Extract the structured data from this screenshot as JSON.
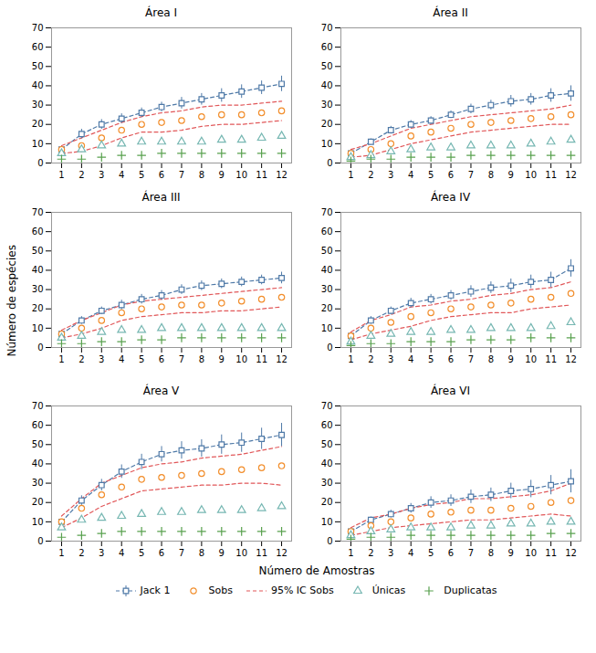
{
  "chart_data": [
    {
      "type": "line",
      "title": "Área I",
      "xlabel": "Número de Amostras",
      "ylabel": "Número de espécies",
      "x": [
        1,
        2,
        3,
        4,
        5,
        6,
        7,
        8,
        9,
        10,
        11,
        12
      ],
      "series": [
        {
          "name": "Jack 1",
          "type": "line",
          "marker": "square",
          "line_style": "dashed",
          "values": [
            7,
            15,
            20,
            23,
            26,
            29,
            31,
            33,
            35,
            37,
            39,
            41
          ],
          "errors": [
            1.0,
            2.5,
            2.5,
            2.5,
            2.5,
            2.5,
            3.0,
            3.0,
            3.5,
            3.5,
            3.5,
            4.0
          ]
        },
        {
          "name": "Sobs",
          "type": "scatter",
          "marker": "circle",
          "values": [
            7,
            9,
            13,
            17,
            20,
            21,
            22,
            24,
            25,
            25,
            26,
            27
          ]
        },
        {
          "name": "95% IC Sobs",
          "type": "line",
          "line_style": "dashed",
          "values": [
            9,
            13,
            17,
            21,
            24,
            26,
            27,
            29,
            30,
            30,
            31,
            32
          ]
        },
        {
          "name": "95% IC Sobs",
          "type": "line",
          "line_style": "dashed",
          "values": [
            5,
            6,
            9,
            13,
            16,
            16,
            17,
            19,
            20,
            20,
            21,
            22
          ]
        },
        {
          "name": "Únicas",
          "type": "scatter",
          "marker": "triangle",
          "values": [
            5,
            7,
            9,
            10,
            11,
            11,
            11,
            11,
            12,
            12,
            13,
            14
          ]
        },
        {
          "name": "Duplicatas",
          "type": "scatter",
          "marker": "plus",
          "values": [
            2,
            2,
            3,
            4,
            4,
            5,
            5,
            5,
            5,
            5,
            5,
            5
          ]
        }
      ],
      "xlim": [
        0.5,
        12.5
      ],
      "xticks": [
        1,
        2,
        3,
        4,
        5,
        6,
        7,
        8,
        9,
        10,
        11,
        12
      ],
      "ylim": [
        0,
        70
      ],
      "yticks": [
        0,
        10,
        20,
        30,
        40,
        50,
        60,
        70
      ],
      "grid": false,
      "legend": "bottom"
    },
    {
      "type": "line",
      "title": "Área II",
      "xlabel": "Número de Amostras",
      "ylabel": "Número de espécies",
      "x": [
        1,
        2,
        3,
        4,
        5,
        6,
        7,
        8,
        9,
        10,
        11,
        12
      ],
      "series": [
        {
          "name": "Jack 1",
          "type": "line",
          "marker": "square",
          "line_style": "dashed",
          "values": [
            5,
            11,
            17,
            20,
            22,
            25,
            28,
            30,
            32,
            33,
            35,
            36
          ],
          "errors": [
            0.5,
            1.5,
            2.0,
            2.0,
            2.0,
            2.0,
            2.5,
            2.5,
            3.0,
            3.0,
            3.5,
            4.0
          ]
        },
        {
          "name": "Sobs",
          "type": "scatter",
          "marker": "circle",
          "values": [
            5,
            7,
            10,
            14,
            16,
            18,
            20,
            21,
            22,
            23,
            24,
            25
          ]
        },
        {
          "name": "95% IC Sobs",
          "type": "line",
          "line_style": "dashed",
          "values": [
            7,
            10,
            14,
            18,
            20,
            22,
            24,
            25,
            26,
            27,
            28,
            30
          ]
        },
        {
          "name": "95% IC Sobs",
          "type": "line",
          "line_style": "dashed",
          "values": [
            3,
            4,
            7,
            10,
            12,
            14,
            16,
            17,
            18,
            19,
            20,
            20
          ]
        },
        {
          "name": "Únicas",
          "type": "scatter",
          "marker": "triangle",
          "values": [
            3,
            4,
            6,
            7,
            8,
            8,
            9,
            9,
            9,
            10,
            11,
            12
          ]
        },
        {
          "name": "Duplicatas",
          "type": "scatter",
          "marker": "plus",
          "values": [
            1,
            2,
            2,
            3,
            3,
            3,
            4,
            4,
            4,
            4,
            4,
            4
          ]
        }
      ],
      "xlim": [
        0.5,
        12.5
      ],
      "xticks": [
        1,
        2,
        3,
        4,
        5,
        6,
        7,
        8,
        9,
        10,
        11,
        12
      ],
      "ylim": [
        0,
        70
      ],
      "yticks": [
        0,
        10,
        20,
        30,
        40,
        50,
        60,
        70
      ],
      "grid": false,
      "legend": "bottom"
    },
    {
      "type": "line",
      "title": "Área III",
      "xlabel": "Número de Amostras",
      "ylabel": "Número de espécies",
      "x": [
        1,
        2,
        3,
        4,
        5,
        6,
        7,
        8,
        9,
        10,
        11,
        12
      ],
      "series": [
        {
          "name": "Jack 1",
          "type": "line",
          "marker": "square",
          "line_style": "dashed",
          "values": [
            7,
            14,
            19,
            22,
            25,
            27,
            30,
            32,
            33,
            34,
            35,
            36
          ],
          "errors": [
            1.0,
            2.0,
            2.0,
            2.5,
            2.5,
            2.5,
            2.5,
            2.5,
            2.5,
            2.5,
            2.5,
            3.0
          ]
        },
        {
          "name": "Sobs",
          "type": "scatter",
          "marker": "circle",
          "values": [
            7,
            10,
            14,
            18,
            20,
            21,
            22,
            22,
            23,
            24,
            25,
            26
          ]
        },
        {
          "name": "95% IC Sobs",
          "type": "line",
          "line_style": "dashed",
          "values": [
            9,
            14,
            18,
            22,
            24,
            25,
            26,
            27,
            28,
            29,
            30,
            31
          ]
        },
        {
          "name": "95% IC Sobs",
          "type": "line",
          "line_style": "dashed",
          "values": [
            5,
            7,
            10,
            14,
            16,
            17,
            18,
            18,
            19,
            19,
            20,
            21
          ]
        },
        {
          "name": "Únicas",
          "type": "scatter",
          "marker": "triangle",
          "values": [
            5,
            6,
            8,
            9,
            9,
            10,
            10,
            10,
            10,
            10,
            10,
            10
          ]
        },
        {
          "name": "Duplicatas",
          "type": "scatter",
          "marker": "plus",
          "values": [
            2,
            2,
            3,
            3,
            4,
            4,
            5,
            5,
            5,
            5,
            5,
            5
          ]
        }
      ],
      "xlim": [
        0.5,
        12.5
      ],
      "xticks": [
        1,
        2,
        3,
        4,
        5,
        6,
        7,
        8,
        9,
        10,
        11,
        12
      ],
      "ylim": [
        0,
        70
      ],
      "yticks": [
        0,
        10,
        20,
        30,
        40,
        50,
        60,
        70
      ],
      "grid": false,
      "legend": "bottom"
    },
    {
      "type": "line",
      "title": "Área IV",
      "xlabel": "Número de Amostras",
      "ylabel": "Número de espécies",
      "x": [
        1,
        2,
        3,
        4,
        5,
        6,
        7,
        8,
        9,
        10,
        11,
        12
      ],
      "series": [
        {
          "name": "Jack 1",
          "type": "line",
          "marker": "square",
          "line_style": "dashed",
          "values": [
            6,
            14,
            19,
            23,
            25,
            27,
            29,
            31,
            32,
            34,
            35,
            41
          ],
          "errors": [
            0.5,
            2.0,
            2.0,
            2.5,
            2.5,
            2.5,
            3.0,
            3.0,
            3.5,
            3.5,
            4.0,
            4.5
          ]
        },
        {
          "name": "Sobs",
          "type": "scatter",
          "marker": "circle",
          "values": [
            6,
            10,
            13,
            16,
            18,
            20,
            21,
            22,
            23,
            25,
            26,
            28
          ]
        },
        {
          "name": "95% IC Sobs",
          "type": "line",
          "line_style": "dashed",
          "values": [
            8,
            14,
            17,
            21,
            22,
            24,
            25,
            27,
            28,
            30,
            31,
            34
          ]
        },
        {
          "name": "95% IC Sobs",
          "type": "line",
          "line_style": "dashed",
          "values": [
            4,
            7,
            9,
            11,
            14,
            16,
            17,
            18,
            18,
            20,
            21,
            22
          ]
        },
        {
          "name": "Únicas",
          "type": "scatter",
          "marker": "triangle",
          "values": [
            3,
            6,
            7,
            8,
            8,
            9,
            9,
            10,
            10,
            10,
            11,
            13
          ]
        },
        {
          "name": "Duplicatas",
          "type": "scatter",
          "marker": "plus",
          "values": [
            1,
            2,
            2,
            3,
            3,
            3,
            4,
            4,
            4,
            5,
            5,
            5
          ]
        }
      ],
      "xlim": [
        0.5,
        12.5
      ],
      "xticks": [
        1,
        2,
        3,
        4,
        5,
        6,
        7,
        8,
        9,
        10,
        11,
        12
      ],
      "ylim": [
        0,
        70
      ],
      "yticks": [
        0,
        10,
        20,
        30,
        40,
        50,
        60,
        70
      ],
      "grid": false,
      "legend": "bottom"
    },
    {
      "type": "line",
      "title": "Área V",
      "xlabel": "Número de Amostras",
      "ylabel": "Número de espécies",
      "x": [
        1,
        2,
        3,
        4,
        5,
        6,
        7,
        8,
        9,
        10,
        11,
        12
      ],
      "series": [
        {
          "name": "Jack 1",
          "type": "line",
          "marker": "square",
          "line_style": "dashed",
          "values": [
            10,
            21,
            29,
            36,
            41,
            45,
            47,
            48,
            50,
            51,
            53,
            55
          ],
          "errors": [
            1.0,
            2.5,
            3.0,
            3.5,
            4.0,
            4.0,
            4.5,
            4.5,
            5.0,
            5.0,
            5.5,
            6.0
          ]
        },
        {
          "name": "Sobs",
          "type": "scatter",
          "marker": "circle",
          "values": [
            10,
            17,
            24,
            28,
            32,
            33,
            34,
            35,
            36,
            37,
            38,
            39
          ]
        },
        {
          "name": "95% IC Sobs",
          "type": "line",
          "line_style": "dashed",
          "values": [
            13,
            22,
            30,
            34,
            38,
            40,
            41,
            43,
            44,
            45,
            47,
            49
          ]
        },
        {
          "name": "95% IC Sobs",
          "type": "line",
          "line_style": "dashed",
          "values": [
            7,
            12,
            18,
            22,
            26,
            27,
            28,
            29,
            29,
            30,
            30,
            29
          ]
        },
        {
          "name": "Únicas",
          "type": "scatter",
          "marker": "triangle",
          "values": [
            7,
            11,
            12,
            13,
            14,
            15,
            15,
            16,
            16,
            16,
            17,
            18
          ]
        },
        {
          "name": "Duplicatas",
          "type": "scatter",
          "marker": "plus",
          "values": [
            2,
            3,
            4,
            5,
            5,
            5,
            5,
            5,
            5,
            5,
            5,
            5
          ]
        }
      ],
      "xlim": [
        0.5,
        12.5
      ],
      "xticks": [
        1,
        2,
        3,
        4,
        5,
        6,
        7,
        8,
        9,
        10,
        11,
        12
      ],
      "ylim": [
        0,
        70
      ],
      "yticks": [
        0,
        10,
        20,
        30,
        40,
        50,
        60,
        70
      ],
      "grid": false,
      "legend": "bottom"
    },
    {
      "type": "line",
      "title": "Área VI",
      "xlabel": "Número de Amostras",
      "ylabel": "Número de espécies",
      "x": [
        1,
        2,
        3,
        4,
        5,
        6,
        7,
        8,
        9,
        10,
        11,
        12
      ],
      "series": [
        {
          "name": "Jack 1",
          "type": "line",
          "marker": "square",
          "line_style": "dashed",
          "values": [
            5,
            11,
            14,
            17,
            20,
            21,
            23,
            24,
            26,
            27,
            29,
            31
          ],
          "errors": [
            0.5,
            1.5,
            2.0,
            2.5,
            3.0,
            3.0,
            3.5,
            3.5,
            4.0,
            4.5,
            5.0,
            6.0
          ]
        },
        {
          "name": "Sobs",
          "type": "scatter",
          "marker": "circle",
          "values": [
            5,
            8,
            10,
            12,
            14,
            15,
            16,
            16,
            17,
            18,
            20,
            21
          ]
        },
        {
          "name": "95% IC Sobs",
          "type": "line",
          "line_style": "dashed",
          "values": [
            7,
            12,
            14,
            17,
            19,
            20,
            22,
            22,
            23,
            24,
            26,
            30
          ]
        },
        {
          "name": "95% IC Sobs",
          "type": "line",
          "line_style": "dashed",
          "values": [
            3,
            5,
            7,
            8,
            9,
            10,
            11,
            11,
            12,
            13,
            14,
            13
          ]
        },
        {
          "name": "Únicas",
          "type": "scatter",
          "marker": "triangle",
          "values": [
            3,
            5,
            6,
            7,
            7,
            7,
            8,
            8,
            9,
            9,
            10,
            10
          ]
        },
        {
          "name": "Duplicatas",
          "type": "scatter",
          "marker": "plus",
          "values": [
            1,
            2,
            2,
            3,
            3,
            3,
            3,
            3,
            3,
            3,
            4,
            4
          ]
        }
      ],
      "xlim": [
        0.5,
        12.5
      ],
      "xticks": [
        1,
        2,
        3,
        4,
        5,
        6,
        7,
        8,
        9,
        10,
        11,
        12
      ],
      "ylim": [
        0,
        70
      ],
      "yticks": [
        0,
        10,
        20,
        30,
        40,
        50,
        60,
        70
      ],
      "grid": false,
      "legend": "bottom"
    }
  ]
}
